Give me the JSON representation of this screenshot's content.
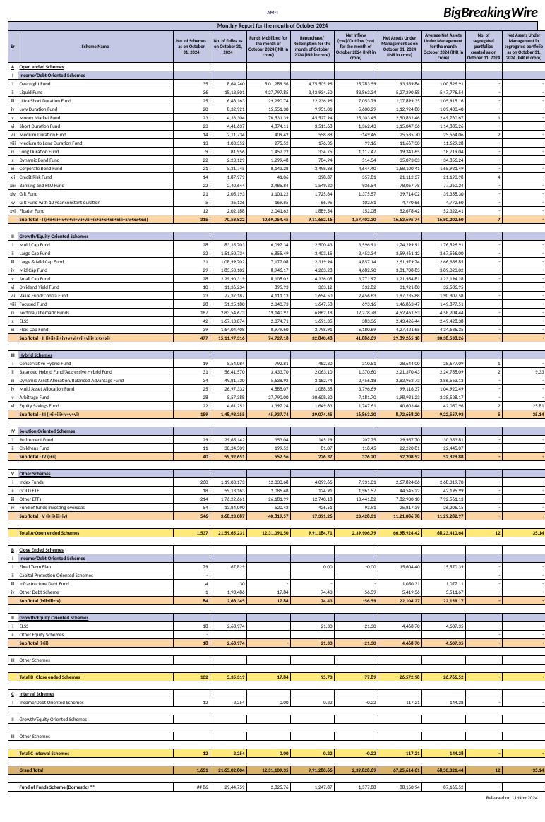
{
  "header": {
    "brand": "BigBreakingWire",
    "logo": "AMFI",
    "title": "Monthly Report for the month of October 2024"
  },
  "columns": [
    "Sr",
    "Scheme Name",
    "No. of Schemes as on October 31, 2024",
    "No. of Folios as on October 31, 2024",
    "Funds Mobilized for the month of October 2024 (INR in crore)",
    "Repurchase/ Redemption for the month of October 2024 (INR in crore)",
    "Net Inflow (+ve)/Outflow (-ve) for the month of October 2024 (INR in crore)",
    "Net Assets Under Management as on October 31, 2024 (INR in crore)",
    "Average Net Assets Under Management for the month October 2024 (INR in crore)",
    "No. of segregated portfolios created as on October 31, 2024",
    "Net Assets Under Management in segregated portfolio as on October 31, 2024 (INR in crore)"
  ],
  "sections": [
    {
      "type": "catA",
      "sr": "A",
      "name": "Open ended Schemes"
    },
    {
      "type": "sec",
      "sr": "I",
      "name": "Income/Debt Oriented Schemes"
    },
    {
      "r": [
        "i",
        "Overnight Fund",
        "35",
        "8,64,240",
        "5,01,289.56",
        "4,75,505.96",
        "25,783.59",
        "93,589.84",
        "1,00,826.91",
        "-",
        "-"
      ]
    },
    {
      "r": [
        "ii",
        "Liquid Fund",
        "36",
        "18,13,501",
        "4,27,797.85",
        "3,43,934.50",
        "83,863.34",
        "5,27,290.58",
        "5,47,776.54",
        "-",
        "-"
      ]
    },
    {
      "r": [
        "iii",
        "Ultra Short Duration Fund",
        "25",
        "6,46,163",
        "29,290.74",
        "22,236.96",
        "7,053.79",
        "1,07,899.35",
        "1,05,915.16",
        "-",
        "-"
      ]
    },
    {
      "r": [
        "iv",
        "Low Duration Fund",
        "20",
        "8,32,921",
        "15,551.30",
        "9,951.01",
        "5,600.29",
        "1,12,924.80",
        "1,09,430.40",
        "-",
        "-"
      ]
    },
    {
      "r": [
        "v",
        "Money Market Fund",
        "23",
        "4,33,304",
        "70,831.39",
        "45,527.94",
        "25,303.45",
        "2,50,832.46",
        "2,49,760.67",
        "1",
        "-"
      ]
    },
    {
      "r": [
        "vi",
        "Short Duration Fund",
        "23",
        "4,41,637",
        "4,874.11",
        "3,511.68",
        "1,362.43",
        "1,15,047.36",
        "1,14,885.26",
        "-",
        "-"
      ]
    },
    {
      "r": [
        "vii",
        "Medium Duration Fund",
        "14",
        "2,11,734",
        "409.42",
        "558.88",
        "-149.46",
        "25,585.70",
        "25,564.06",
        "2",
        "-"
      ]
    },
    {
      "r": [
        "viii",
        "Medium to Long Duration Fund",
        "13",
        "1,03,352",
        "275.52",
        "176.36",
        "99.16",
        "11,667.30",
        "11,629.28",
        "-",
        "-"
      ]
    },
    {
      "r": [
        "ix",
        "Long Duration Fund",
        "9",
        "81,956",
        "1,452.22",
        "334.75",
        "1,117.47",
        "19,341.65",
        "18,719.04",
        "-",
        "-"
      ]
    },
    {
      "r": [
        "x",
        "Dynamic Bond Fund",
        "22",
        "2,23,129",
        "1,299.48",
        "784.94",
        "514.54",
        "35,073.03",
        "34,856.24",
        "-",
        "-"
      ]
    },
    {
      "r": [
        "xi",
        "Corporate Bond Fund",
        "21",
        "5,31,745",
        "8,143.28",
        "3,498.88",
        "4,644.40",
        "1,68,100.41",
        "1,65,931.49",
        "-",
        "-"
      ]
    },
    {
      "r": [
        "xii",
        "Credit Risk Fund",
        "14",
        "1,87,979",
        "41.06",
        "398.87",
        "-357.81",
        "21,112.37",
        "21,193.98",
        "4",
        "-"
      ]
    },
    {
      "r": [
        "xiii",
        "Banking and PSU Fund",
        "22",
        "2,40,644",
        "2,485.84",
        "1,549.30",
        "936.54",
        "78,067.78",
        "77,260.24",
        "-",
        "-"
      ]
    },
    {
      "r": [
        "xiv",
        "Gilt Fund",
        "21",
        "2,08,193",
        "3,101.22",
        "1,725.64",
        "1,375.57",
        "39,714.02",
        "39,358.30",
        "-",
        "-"
      ]
    },
    {
      "r": [
        "xv",
        "Gilt Fund with 10 year constant duration",
        "5",
        "36,136",
        "169.85",
        "66.95",
        "102.91",
        "4,770.66",
        "4,772.60",
        "-",
        "-"
      ]
    },
    {
      "r": [
        "xvi",
        "Floater Fund",
        "12",
        "2,02,188",
        "2,041.62",
        "1,889.54",
        "152.08",
        "52,678.42",
        "52,322.41",
        "-",
        "-"
      ]
    },
    {
      "sub": "orange",
      "r": [
        "",
        "Sub Total - I (i+ii+iii+iv+v+vi+vii+viii+ix+x+xi+xii+xiii+xiv+xv+xvi)",
        "315",
        "70,58,822",
        "10,69,054.45",
        "9,11,652.16",
        "1,57,402.30",
        "16,63,695.74",
        "16,80,202.60",
        "7",
        "-"
      ]
    },
    {
      "blank": true
    },
    {
      "type": "sec",
      "sr": "II",
      "name": "Growth/Equity Oriented Schemes"
    },
    {
      "r": [
        "i",
        "Multi Cap Fund",
        "28",
        "83,35,703",
        "6,097.34",
        "2,500.43",
        "3,596.91",
        "1,74,299.91",
        "1,76,526.91",
        "-",
        "-"
      ]
    },
    {
      "r": [
        "ii",
        "Large Cap Fund",
        "32",
        "1,51,50,734",
        "6,855.49",
        "3,403.15",
        "3,452.34",
        "3,59,461.12",
        "3,67,566.00",
        "-",
        "-"
      ]
    },
    {
      "r": [
        "iii",
        "Large & Mid Cap Fund",
        "31",
        "1,08,99,702",
        "7,177.08",
        "2,319.94",
        "4,857.14",
        "2,61,979.74",
        "2,66,686.85",
        "-",
        "-"
      ]
    },
    {
      "r": [
        "iv",
        "Mid Cap Fund",
        "29",
        "1,83,50,102",
        "8,946.17",
        "4,263.28",
        "4,682.90",
        "3,81,708.83",
        "3,89,023.02",
        "-",
        "-"
      ]
    },
    {
      "r": [
        "v",
        "Small Cap Fund",
        "28",
        "2,29,90,319",
        "8,108.02",
        "4,336.05",
        "3,771.97",
        "3,21,984.81",
        "3,23,194.28",
        "-",
        "-"
      ]
    },
    {
      "r": [
        "vi",
        "Dividend Yield Fund",
        "10",
        "11,36,234",
        "895.93",
        "363.12",
        "532.82",
        "31,921.80",
        "32,586.95",
        "-",
        "-"
      ]
    },
    {
      "r": [
        "vii",
        "Value Fund/Contra Fund",
        "23",
        "77,37,187",
        "4,111.13",
        "1,654.50",
        "2,456.63",
        "1,87,735.88",
        "1,90,807.58",
        "-",
        "-"
      ]
    },
    {
      "r": [
        "viii",
        "Focused Fund",
        "28",
        "51,25,180",
        "2,340.73",
        "1,647.58",
        "693.16",
        "1,46,863.47",
        "1,49,877.51",
        "-",
        "-"
      ]
    },
    {
      "r": [
        "ix",
        "Sectoral/Thematic Funds",
        "187",
        "2,83,54,673",
        "19,140.97",
        "6,862.18",
        "12,278.78",
        "4,52,461.53",
        "4,58,204.44",
        "-",
        "-"
      ]
    },
    {
      "r": [
        "x",
        "ELSS",
        "42",
        "1,67,13,074",
        "2,074.71",
        "1,691.35",
        "383.36",
        "2,43,426.44",
        "2,49,428.38",
        "-",
        "-"
      ]
    },
    {
      "r": [
        "xi",
        "Flexi Cap Fund",
        "39",
        "1,64,04,408",
        "8,979.60",
        "3,798.91",
        "5,180.69",
        "4,27,421.65",
        "4,34,636.35",
        "-",
        "-"
      ]
    },
    {
      "sub": "orange",
      "r": [
        "",
        "Sub Total - II (i+ii+iii+iv+v+vi+vii+viii+ix+x+xi)",
        "477",
        "15,11,97,316",
        "74,727.18",
        "32,840.48",
        "41,886.69",
        "29,89,265.18",
        "30,38,538.26",
        "-",
        "-"
      ]
    },
    {
      "blank": true
    },
    {
      "type": "sec",
      "sr": "III",
      "name": "Hybrid Schemes"
    },
    {
      "r": [
        "i",
        "Conservative Hybrid Fund",
        "19",
        "5,54,084",
        "792.81",
        "482.30",
        "310.51",
        "28,644.00",
        "28,677.09",
        "1",
        "-"
      ]
    },
    {
      "r": [
        "ii",
        "Balanced Hybrid Fund/Aggressive Hybrid Fund",
        "31",
        "56,41,570",
        "3,433.70",
        "2,063.10",
        "1,370.60",
        "2,21,370.43",
        "2,24,788.09",
        "2",
        "9.33"
      ]
    },
    {
      "r": [
        "iii",
        "Dynamic Asset Allocation/Balanced Advantage Fund",
        "34",
        "49,81,730",
        "5,638.92",
        "3,182.74",
        "2,456.18",
        "2,83,952.73",
        "2,86,563.13",
        "-",
        "-"
      ]
    },
    {
      "r": [
        "iv",
        "Multi Asset Allocation Fund",
        "25",
        "26,97,332",
        "4,885.07",
        "1,088.38",
        "3,796.69",
        "99,116.37",
        "1,04,920.49",
        "-",
        "-"
      ]
    },
    {
      "r": [
        "v",
        "Arbitrage Fund",
        "28",
        "5,57,388",
        "27,790.00",
        "20,608.30",
        "7,181.70",
        "1,98,981.23",
        "2,35,528.17",
        "-",
        "-"
      ]
    },
    {
      "r": [
        "vi",
        "Equity Savings Fund",
        "22",
        "4,61,251",
        "3,397.24",
        "1,649.63",
        "1,747.61",
        "40,603.44",
        "42,080.96",
        "2",
        "25.81"
      ]
    },
    {
      "sub": "orange",
      "r": [
        "",
        "Sub Total - III (i+ii+iii+iv+v+vi)",
        "159",
        "1,48,93,355",
        "45,937.74",
        "29,074.45",
        "16,863.30",
        "8,72,668.20",
        "9,22,557.93",
        "5",
        "35.14"
      ]
    },
    {
      "blank": true
    },
    {
      "type": "sec",
      "sr": "IV",
      "name": "Solution Oriented Schemes"
    },
    {
      "r": [
        "i",
        "Retirement Fund",
        "29",
        "29,68,142",
        "353.04",
        "145.29",
        "207.75",
        "29,987.70",
        "30,383.81",
        "-",
        "-"
      ]
    },
    {
      "r": [
        "ii",
        "Childrens Fund",
        "11",
        "30,24,509",
        "199.52",
        "81.07",
        "118.45",
        "22,220.81",
        "22,445.07",
        "-",
        "-"
      ]
    },
    {
      "sub": "orange",
      "r": [
        "",
        "Sub Total - IV (i+ii)",
        "40",
        "59,92,651",
        "552.56",
        "226.37",
        "326.20",
        "52,208.52",
        "52,828.88",
        "-",
        "-"
      ]
    },
    {
      "blank": true
    },
    {
      "type": "sec",
      "sr": "V",
      "name": "Other Schemes"
    },
    {
      "r": [
        "i",
        "Index Funds",
        "260",
        "1,19,03,173",
        "12,030.68",
        "4,099.66",
        "7,931.01",
        "2,67,824.06",
        "2,68,319.70",
        "-",
        "-"
      ]
    },
    {
      "r": [
        "ii",
        "GOLD ETF",
        "18",
        "59,13,163",
        "2,086.48",
        "124.91",
        "1,961.57",
        "44,545.22",
        "42,195.99",
        "-",
        "-"
      ]
    },
    {
      "r": [
        "iii",
        "Other ETFs",
        "214",
        "1,76,22,661",
        "26,181.99",
        "12,740.18",
        "13,441.82",
        "7,82,900.10",
        "7,92,561.13",
        "-",
        "-"
      ]
    },
    {
      "r": [
        "iv",
        "Fund of funds investing overseas",
        "54",
        "13,84,090",
        "520.42",
        "426.51",
        "93.91",
        "25,817.39",
        "26,206.15",
        "-",
        "-"
      ]
    },
    {
      "sub": "orange",
      "r": [
        "",
        "Sub Total - V (i+ii+iii+iv)",
        "546",
        "3,68,23,087",
        "40,819.57",
        "17,391.26",
        "23,428.31",
        "11,21,086.78",
        "11,29,282.97",
        "-",
        "-"
      ]
    },
    {
      "blank": true
    },
    {
      "tot": "yellow",
      "r": [
        "",
        "Total A-Open ended Schemes",
        "1,537",
        "21,59,65,231",
        "12,31,091.50",
        "9,91,184.71",
        "2,39,906.79",
        "66,98,924.42",
        "68,23,410.64",
        "12",
        "35.14"
      ]
    },
    {
      "blank": true
    },
    {
      "type": "catA",
      "sr": "B",
      "name": "Close Ended Schemes"
    },
    {
      "type": "sec",
      "sr": "I",
      "name": "Income/Debt Oriented Schemes"
    },
    {
      "r": [
        "i",
        "Fixed Term Plan",
        "79",
        "67,829",
        "",
        "0.00",
        "-0.00",
        "15,604.40",
        "15,570.39",
        "-",
        "-"
      ]
    },
    {
      "r": [
        "ii",
        "Capital Protection Oriented Schemes",
        "-",
        "",
        "",
        "",
        "",
        "",
        "",
        "-",
        "-"
      ]
    },
    {
      "r": [
        "iii",
        "Infrastructure Debt Fund",
        "4",
        "30",
        "-",
        "-",
        "-",
        "1,080.31",
        "1,077.11",
        "-",
        "-"
      ]
    },
    {
      "r": [
        "iv",
        "Other Debt Scheme",
        "1",
        "1,98,486",
        "17.84",
        "74.43",
        "-56.59",
        "5,419.56",
        "5,511.67",
        "-",
        "-"
      ]
    },
    {
      "sub": "orange",
      "r": [
        "",
        "Sub Total (i+ii+iii+iv)",
        "84",
        "2,66,345",
        "17.84",
        "74.43",
        "-56.59",
        "22,104.27",
        "22,159.17",
        "-",
        "-"
      ]
    },
    {
      "blank": true
    },
    {
      "type": "sec",
      "sr": "II",
      "name": "Growth/Equity Oriented Schemes"
    },
    {
      "r": [
        "i",
        "ELSS",
        "18",
        "2,68,974",
        "",
        "21.30",
        "-21.30",
        "4,468.70",
        "4,607.35",
        "-",
        "-"
      ]
    },
    {
      "r": [
        "ii",
        "Other Equity Schemes",
        "-",
        "",
        "",
        "",
        "",
        "",
        "",
        "-",
        "-"
      ]
    },
    {
      "sub": "orange",
      "r": [
        "",
        "Sub Total (i+ii)",
        "18",
        "2,68,974",
        "-",
        "21.30",
        "-21.30",
        "4,468.70",
        "4,607.35",
        "-",
        "-"
      ]
    },
    {
      "blank": true
    },
    {
      "r": [
        "III",
        "Other Schemes",
        "",
        "",
        "",
        "",
        "",
        "",
        "",
        "",
        ""
      ]
    },
    {
      "blank": true
    },
    {
      "tot": "yellow",
      "r": [
        "",
        "Total B -Close ended Schemes",
        "102",
        "5,35,319",
        "17.84",
        "95.73",
        "-77.89",
        "26,572.98",
        "26,766.52",
        "-",
        "-"
      ]
    },
    {
      "blank": true
    },
    {
      "type": "catA",
      "sr": "C",
      "name": "Interval Schemes"
    },
    {
      "r": [
        "I",
        "Income/Debt Oriented Schemes",
        "12",
        "2,254",
        "0.00",
        "0.22",
        "-0.22",
        "117.21",
        "144.28",
        "-",
        "-"
      ]
    },
    {
      "blank": true
    },
    {
      "r": [
        "II",
        "Growth/Equity Oriented Schemes",
        "",
        "",
        "",
        "",
        "",
        "",
        "",
        "",
        ""
      ]
    },
    {
      "blank": true
    },
    {
      "r": [
        "III",
        "Other Schemes",
        "",
        "",
        "",
        "",
        "",
        "",
        "",
        "",
        ""
      ]
    },
    {
      "blank": true
    },
    {
      "tot": "yellow",
      "r": [
        "",
        "Total C Interval Schemes",
        "12",
        "2,254",
        "0.00",
        "0.22",
        "-0.22",
        "117.21",
        "144.28",
        "-",
        "-"
      ]
    },
    {
      "blank": true
    },
    {
      "grand": true,
      "r": [
        "",
        "Grand Total",
        "1,651",
        "21,65,02,804",
        "12,31,109.35",
        "9,91,280.66",
        "2,39,828.69",
        "67,25,614.61",
        "68,50,321.44",
        "12",
        "35.14"
      ]
    },
    {
      "blank": true
    },
    {
      "r": [
        "",
        "Fund of Funds Scheme (Domestic) **",
        "## 86",
        "29,44,759",
        "2,825.76",
        "1,247.87",
        "1,577.88",
        "88,150.94",
        "87,165.52",
        "-",
        "-"
      ],
      "bold": true
    }
  ],
  "footer": "Released on 11-Nov-2024"
}
